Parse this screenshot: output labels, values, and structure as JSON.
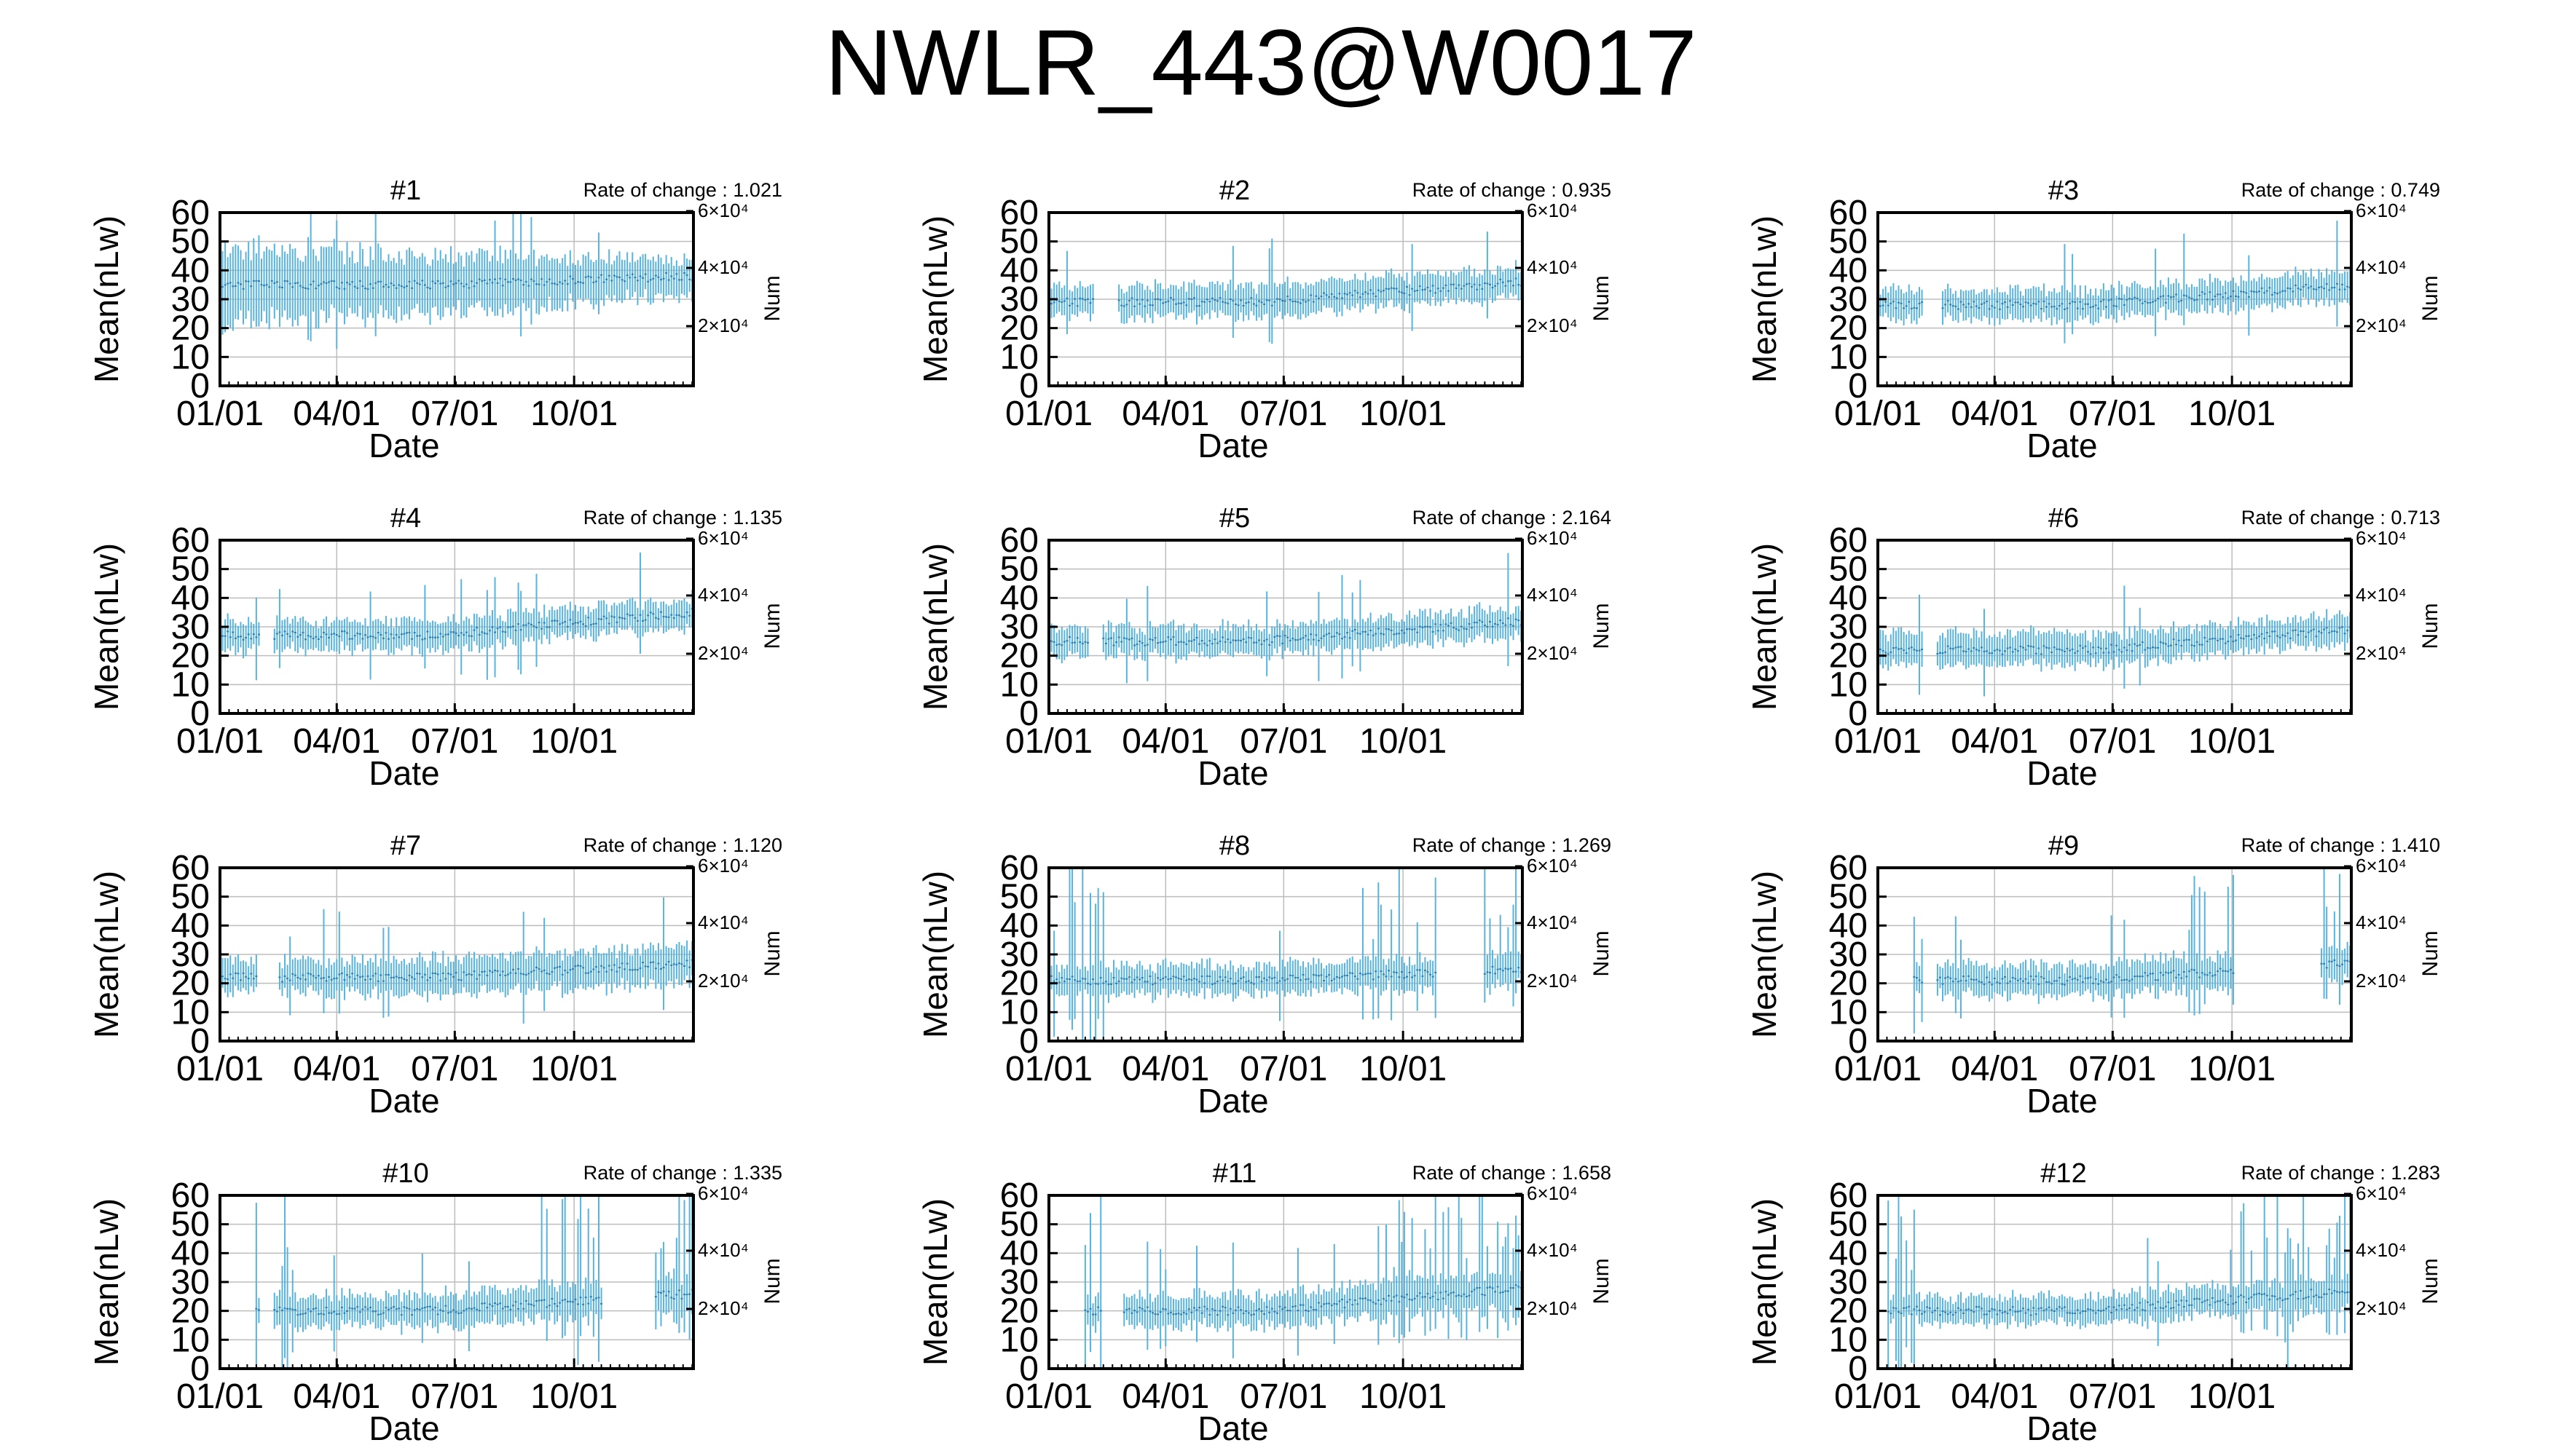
{
  "figure": {
    "title": "NWLR_443@W0017",
    "bar_color": "#58b4dc"
  },
  "chart_data": [
    {
      "type": "bar",
      "title": "#1",
      "annotation": "Rate of change : 1.021",
      "xlabel": "Date",
      "ylabel": "Mean(nLw)",
      "y2label": "Num",
      "ylim": [
        0,
        60
      ],
      "y2ticks": [
        "6×10⁴",
        "4×10⁴",
        "2×10⁴"
      ],
      "xticks": [
        "01/01",
        "04/01",
        "07/01",
        "10/01"
      ],
      "yticks": [
        "0",
        "10",
        "20",
        "30",
        "40",
        "50",
        "60"
      ],
      "x_range_days": [
        0,
        365
      ],
      "series": [
        {
          "style": "errorbar",
          "center": 35,
          "low": 22,
          "high": 48,
          "trend_end_center": 38,
          "trend_end_low": 32,
          "trend_end_high": 44,
          "start_day": 0,
          "gaps": []
        }
      ]
    },
    {
      "type": "bar",
      "title": "#2",
      "annotation": "Rate of change : 0.935",
      "xlabel": "Date",
      "ylabel": "Mean(nLw)",
      "y2label": "Num",
      "ylim": [
        0,
        60
      ],
      "y2ticks": [
        "6×10⁴",
        "4×10⁴",
        "2×10⁴"
      ],
      "xticks": [
        "01/01",
        "04/01",
        "07/01",
        "10/01"
      ],
      "yticks": [
        "0",
        "10",
        "20",
        "30",
        "40",
        "50",
        "60"
      ],
      "x_range_days": [
        0,
        365
      ],
      "series": [
        {
          "style": "errorbar",
          "center": 29,
          "low": 24,
          "high": 35,
          "trend_end_center": 36,
          "trend_end_low": 31,
          "trend_end_high": 41,
          "start_day": 0,
          "gaps": [
            [
              35,
              52
            ]
          ]
        }
      ]
    },
    {
      "type": "bar",
      "title": "#3",
      "annotation": "Rate of change : 0.749",
      "xlabel": "Date",
      "ylabel": "Mean(nLw)",
      "y2label": "Num",
      "ylim": [
        0,
        60
      ],
      "y2ticks": [
        "6×10⁴",
        "4×10⁴",
        "2×10⁴"
      ],
      "xticks": [
        "01/01",
        "04/01",
        "07/01",
        "10/01"
      ],
      "yticks": [
        "0",
        "10",
        "20",
        "30",
        "40",
        "50",
        "60"
      ],
      "x_range_days": [
        0,
        365
      ],
      "series": [
        {
          "style": "errorbar",
          "center": 28,
          "low": 23,
          "high": 33,
          "trend_end_center": 35,
          "trend_end_low": 30,
          "trend_end_high": 40,
          "start_day": 0,
          "gaps": [
            [
              35,
              48
            ]
          ]
        }
      ]
    },
    {
      "type": "bar",
      "title": "#4",
      "annotation": "Rate of change : 1.135",
      "xlabel": "Date",
      "ylabel": "Mean(nLw)",
      "y2label": "Num",
      "ylim": [
        0,
        60
      ],
      "y2ticks": [
        "6×10⁴",
        "4×10⁴",
        "2×10⁴"
      ],
      "xticks": [
        "01/01",
        "04/01",
        "07/01",
        "10/01"
      ],
      "yticks": [
        "0",
        "10",
        "20",
        "30",
        "40",
        "50",
        "60"
      ],
      "x_range_days": [
        0,
        365
      ],
      "series": [
        {
          "style": "errorbar",
          "center": 27,
          "low": 22,
          "high": 32,
          "trend_end_center": 35,
          "trend_end_low": 30,
          "trend_end_high": 40,
          "start_day": 0,
          "gaps": [
            [
              32,
              40
            ]
          ]
        }
      ]
    },
    {
      "type": "bar",
      "title": "#5",
      "annotation": "Rate of change : 2.164",
      "xlabel": "Date",
      "ylabel": "Mean(nLw)",
      "y2label": "Num",
      "ylim": [
        0,
        60
      ],
      "y2ticks": [
        "6×10⁴",
        "4×10⁴",
        "2×10⁴"
      ],
      "xticks": [
        "01/01",
        "04/01",
        "07/01",
        "10/01"
      ],
      "yticks": [
        "0",
        "10",
        "20",
        "30",
        "40",
        "50",
        "60"
      ],
      "x_range_days": [
        0,
        365
      ],
      "series": [
        {
          "style": "errorbar",
          "center": 25,
          "low": 20,
          "high": 30,
          "trend_end_center": 32,
          "trend_end_low": 27,
          "trend_end_high": 37,
          "start_day": 0,
          "gaps": [
            [
              32,
              40
            ]
          ]
        }
      ]
    },
    {
      "type": "bar",
      "title": "#6",
      "annotation": "Rate of change : 0.713",
      "xlabel": "Date",
      "ylabel": "Mean(nLw)",
      "y2label": "Num",
      "ylim": [
        0,
        60
      ],
      "y2ticks": [
        "6×10⁴",
        "4×10⁴",
        "2×10⁴"
      ],
      "xticks": [
        "01/01",
        "04/01",
        "07/01",
        "10/01"
      ],
      "yticks": [
        "0",
        "10",
        "20",
        "30",
        "40",
        "50",
        "60"
      ],
      "x_range_days": [
        0,
        365
      ],
      "series": [
        {
          "style": "errorbar",
          "center": 22,
          "low": 17,
          "high": 28,
          "trend_end_center": 29,
          "trend_end_low": 24,
          "trend_end_high": 34,
          "start_day": 0,
          "gaps": [
            [
              35,
              45
            ]
          ]
        }
      ]
    },
    {
      "type": "bar",
      "title": "#7",
      "annotation": "Rate of change : 1.120",
      "xlabel": "Date",
      "ylabel": "Mean(nLw)",
      "y2label": "Num",
      "ylim": [
        0,
        60
      ],
      "y2ticks": [
        "6×10⁴",
        "4×10⁴",
        "2×10⁴"
      ],
      "xticks": [
        "01/01",
        "04/01",
        "07/01",
        "10/01"
      ],
      "yticks": [
        "0",
        "10",
        "20",
        "30",
        "40",
        "50",
        "60"
      ],
      "x_range_days": [
        0,
        365
      ],
      "series": [
        {
          "style": "errorbar",
          "center": 22,
          "low": 17,
          "high": 28,
          "trend_end_center": 27,
          "trend_end_low": 20,
          "trend_end_high": 33,
          "start_day": 0,
          "gaps": [
            [
              30,
              44
            ]
          ]
        }
      ]
    },
    {
      "type": "bar",
      "title": "#8",
      "annotation": "Rate of change : 1.269",
      "xlabel": "Date",
      "ylabel": "Mean(nLw)",
      "y2label": "Num",
      "ylim": [
        0,
        60
      ],
      "y2ticks": [
        "6×10⁴",
        "4×10⁴",
        "2×10⁴"
      ],
      "xticks": [
        "01/01",
        "04/01",
        "07/01",
        "10/01"
      ],
      "yticks": [
        "0",
        "10",
        "20",
        "30",
        "40",
        "50",
        "60"
      ],
      "x_range_days": [
        0,
        365
      ],
      "series": [
        {
          "style": "errorbar",
          "center": 21,
          "low": 16,
          "high": 26,
          "trend_end_center": 25,
          "trend_end_low": 20,
          "trend_end_high": 30,
          "start_day": 0,
          "noisy_start_until": 45,
          "noisy_end_from": 240,
          "gaps": [
            [
              300,
              335
            ]
          ]
        }
      ]
    },
    {
      "type": "bar",
      "title": "#9",
      "annotation": "Rate of change : 1.410",
      "xlabel": "Date",
      "ylabel": "Mean(nLw)",
      "y2label": "Num",
      "ylim": [
        0,
        60
      ],
      "y2ticks": [
        "6×10⁴",
        "4×10⁴",
        "2×10⁴"
      ],
      "xticks": [
        "01/01",
        "04/01",
        "07/01",
        "10/01"
      ],
      "yticks": [
        "0",
        "10",
        "20",
        "30",
        "40",
        "50",
        "60"
      ],
      "x_range_days": [
        0,
        365
      ],
      "series": [
        {
          "style": "errorbar",
          "center": 21,
          "low": 16,
          "high": 26,
          "trend_end_center": 27,
          "trend_end_low": 21,
          "trend_end_high": 33,
          "start_day": 28,
          "noisy_start_until": 60,
          "noisy_end_from": 240,
          "gaps": [
            [
              35,
              45
            ],
            [
              275,
              340
            ]
          ]
        }
      ]
    },
    {
      "type": "bar",
      "title": "#10",
      "annotation": "Rate of change : 1.335",
      "xlabel": "Date",
      "ylabel": "Mean(nLw)",
      "y2label": "Num",
      "ylim": [
        0,
        60
      ],
      "y2ticks": [
        "6×10⁴",
        "4×10⁴",
        "2×10⁴"
      ],
      "xticks": [
        "01/01",
        "04/01",
        "07/01",
        "10/01"
      ],
      "yticks": [
        "0",
        "10",
        "20",
        "30",
        "40",
        "50",
        "60"
      ],
      "x_range_days": [
        0,
        365
      ],
      "series": [
        {
          "style": "errorbar",
          "center": 20,
          "low": 15,
          "high": 25,
          "trend_end_center": 26,
          "trend_end_low": 20,
          "trend_end_high": 32,
          "start_day": 28,
          "noisy_start_until": 55,
          "noisy_end_from": 245,
          "gaps": [
            [
              32,
              40
            ],
            [
              295,
              335
            ]
          ]
        }
      ]
    },
    {
      "type": "bar",
      "title": "#11",
      "annotation": "Rate of change : 1.658",
      "xlabel": "Date",
      "ylabel": "Mean(nLw)",
      "y2label": "Num",
      "ylim": [
        0,
        60
      ],
      "y2ticks": [
        "6×10⁴",
        "4×10⁴",
        "2×10⁴"
      ],
      "xticks": [
        "01/01",
        "04/01",
        "07/01",
        "10/01"
      ],
      "yticks": [
        "0",
        "10",
        "20",
        "30",
        "40",
        "50",
        "60"
      ],
      "x_range_days": [
        0,
        365
      ],
      "series": [
        {
          "style": "errorbar",
          "center": 20,
          "low": 15,
          "high": 25,
          "trend_end_center": 28,
          "trend_end_low": 22,
          "trend_end_high": 34,
          "start_day": 28,
          "noisy_start_until": 55,
          "noisy_end_from": 250,
          "gaps": [
            [
              42,
              56
            ]
          ]
        }
      ]
    },
    {
      "type": "bar",
      "title": "#12",
      "annotation": "Rate of change : 1.283",
      "xlabel": "Date",
      "ylabel": "Mean(nLw)",
      "y2label": "Num",
      "ylim": [
        0,
        60
      ],
      "y2ticks": [
        "6×10⁴",
        "4×10⁴",
        "2×10⁴"
      ],
      "xticks": [
        "01/01",
        "04/01",
        "07/01",
        "10/01"
      ],
      "yticks": [
        "0",
        "10",
        "20",
        "30",
        "40",
        "50",
        "60"
      ],
      "x_range_days": [
        0,
        365
      ],
      "series": [
        {
          "style": "errorbar",
          "center": 20,
          "low": 16,
          "high": 25,
          "trend_end_center": 27,
          "trend_end_low": 22,
          "trend_end_high": 32,
          "start_day": 8,
          "noisy_start_until": 35,
          "noisy_end_from": 270,
          "gaps": []
        }
      ]
    }
  ]
}
